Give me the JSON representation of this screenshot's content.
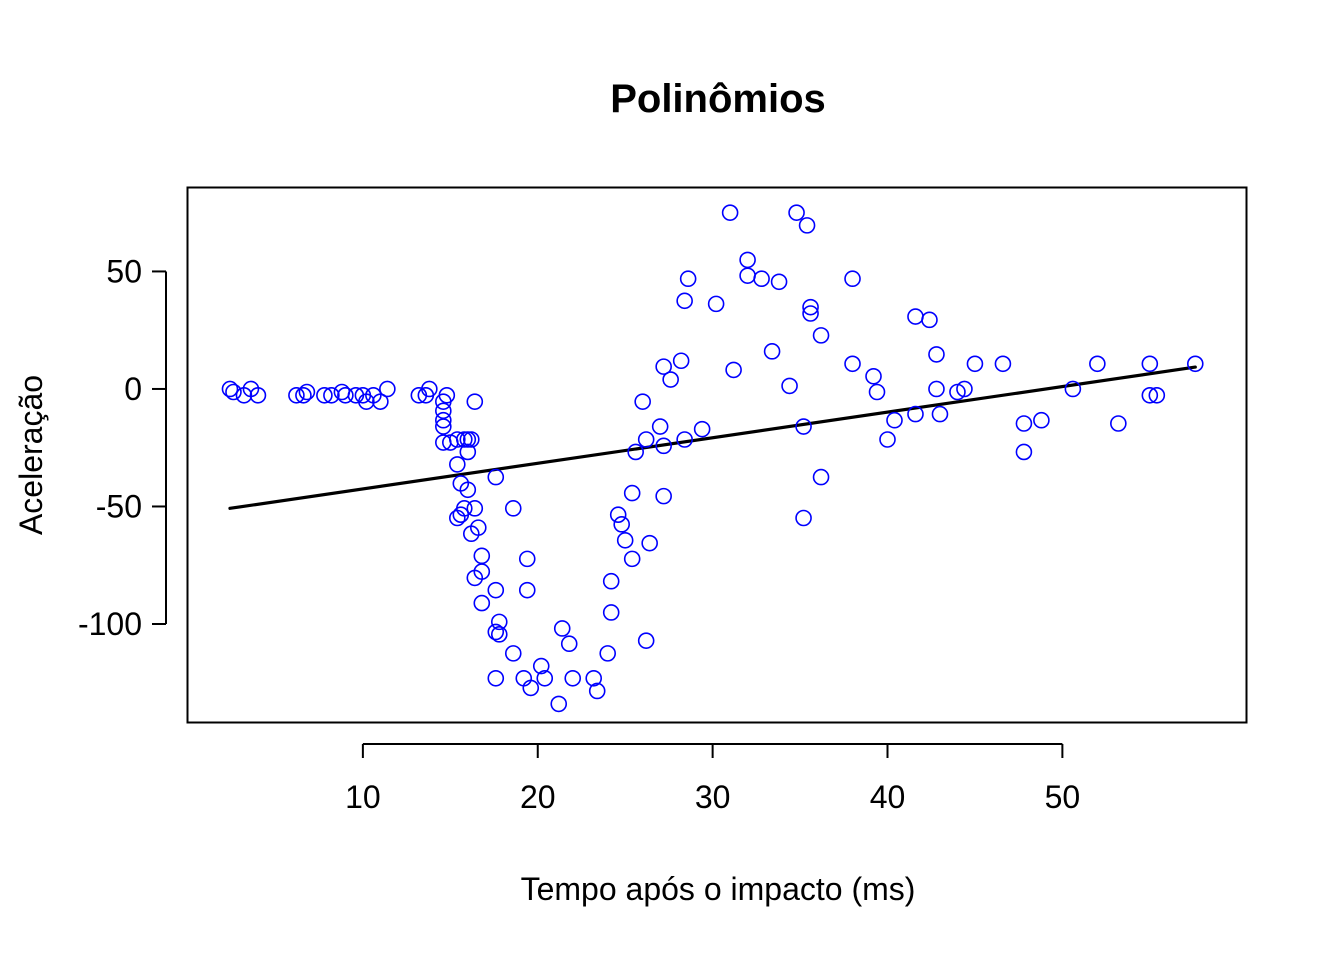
{
  "chart_data": {
    "type": "scatter",
    "title": "Polinômios",
    "xlabel": "Tempo após o impacto (ms)",
    "ylabel": "Aceleração",
    "xlim": [
      0,
      60.5
    ],
    "ylim": [
      -141.7,
      85.5
    ],
    "x_ticks": [
      10,
      20,
      30,
      40,
      50
    ],
    "y_ticks": [
      50,
      0,
      -50,
      -100
    ],
    "grid": false,
    "point_color": "#0000FF",
    "line_color": "#000000",
    "series": [
      {
        "type": "points",
        "x": [
          2.4,
          2.6,
          3.2,
          3.6,
          4.0,
          6.2,
          6.6,
          6.8,
          7.8,
          8.2,
          8.8,
          9.0,
          9.6,
          10.0,
          10.2,
          10.6,
          11.0,
          11.4,
          13.2,
          13.6,
          13.8,
          14.6,
          14.6,
          14.6,
          14.6,
          14.6,
          14.8,
          15.0,
          15.4,
          15.4,
          15.4,
          15.6,
          15.6,
          15.8,
          15.8,
          16.0,
          16.0,
          16.0,
          16.2,
          16.2,
          16.4,
          16.4,
          16.4,
          16.6,
          16.8,
          16.8,
          16.8,
          17.6,
          17.6,
          17.6,
          17.6,
          17.8,
          17.8,
          18.6,
          18.6,
          19.2,
          19.4,
          19.4,
          19.6,
          20.2,
          20.4,
          21.2,
          21.4,
          21.8,
          22.0,
          23.2,
          23.4,
          24.0,
          24.2,
          24.2,
          24.6,
          24.8,
          25.0,
          25.4,
          25.4,
          25.6,
          26.0,
          26.2,
          26.2,
          26.4,
          27.0,
          27.2,
          27.2,
          27.2,
          27.6,
          28.2,
          28.4,
          28.4,
          28.6,
          29.4,
          30.2,
          31.0,
          31.2,
          32.0,
          32.0,
          32.8,
          33.4,
          33.8,
          34.4,
          34.8,
          35.2,
          35.2,
          35.4,
          35.6,
          35.6,
          36.2,
          36.2,
          38.0,
          38.0,
          39.2,
          39.4,
          40.0,
          40.4,
          41.6,
          41.6,
          42.4,
          42.8,
          42.8,
          43.0,
          44.0,
          44.4,
          45.0,
          46.6,
          47.8,
          47.8,
          48.8,
          50.6,
          52.0,
          53.2,
          55.0,
          55.0,
          55.4,
          57.6
        ],
        "y": [
          0.0,
          -1.3,
          -2.7,
          0.0,
          -2.7,
          -2.7,
          -2.7,
          -1.3,
          -2.7,
          -2.7,
          -1.3,
          -2.7,
          -2.7,
          -2.7,
          -5.4,
          -2.7,
          -5.4,
          0.0,
          -2.7,
          -2.7,
          0.0,
          -5.4,
          -9.3,
          -13.3,
          -16.0,
          -22.8,
          -2.7,
          -22.8,
          -21.5,
          -32.1,
          -54.9,
          -53.5,
          -40.2,
          -21.5,
          -50.8,
          -42.9,
          -21.5,
          -26.8,
          -61.6,
          -21.5,
          -5.4,
          -50.8,
          -80.4,
          -59.0,
          -91.1,
          -77.7,
          -71.0,
          -37.5,
          -85.6,
          -103.4,
          -123.1,
          -99.1,
          -104.4,
          -50.8,
          -112.5,
          -123.1,
          -85.6,
          -72.3,
          -127.2,
          -117.9,
          -123.1,
          -134.0,
          -101.9,
          -108.4,
          -123.1,
          -123.1,
          -128.5,
          -112.5,
          -95.1,
          -81.8,
          -53.5,
          -57.6,
          -64.4,
          -72.3,
          -44.3,
          -26.8,
          -5.4,
          -107.1,
          -21.5,
          -65.6,
          -16.0,
          -45.6,
          -24.2,
          9.5,
          4.0,
          12.0,
          -21.5,
          37.5,
          46.9,
          -17.1,
          36.2,
          75.0,
          8.1,
          48.2,
          54.9,
          46.9,
          16.0,
          45.6,
          1.3,
          75.0,
          -16.0,
          -54.9,
          69.6,
          34.8,
          32.1,
          -37.5,
          22.8,
          10.7,
          46.9,
          5.4,
          -1.3,
          -21.5,
          -13.3,
          30.8,
          -10.7,
          29.4,
          0.0,
          14.7,
          -10.7,
          -1.3,
          0.0,
          10.7,
          10.7,
          -14.7,
          -26.8,
          -13.3,
          0.0,
          10.7,
          -14.7,
          -2.7,
          10.7,
          -2.7,
          10.7
        ]
      },
      {
        "type": "line",
        "x": [
          2.4,
          57.6
        ],
        "y": [
          -50.8,
          9.3
        ]
      }
    ]
  }
}
